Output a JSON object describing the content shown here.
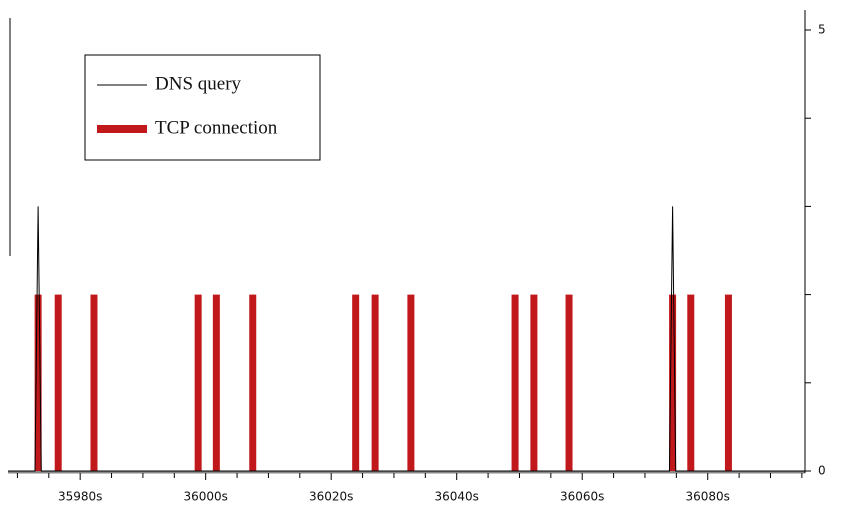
{
  "chart_data": {
    "type": "timeline",
    "xlim": [
      35968.5,
      36095.5
    ],
    "xticks": [
      {
        "value": 35980,
        "label": "35980s"
      },
      {
        "value": 36000,
        "label": "36000s"
      },
      {
        "value": 36020,
        "label": "36020s"
      },
      {
        "value": 36040,
        "label": "36040s"
      },
      {
        "value": 36060,
        "label": "36060s"
      },
      {
        "value": 36080,
        "label": "36080s"
      }
    ],
    "x_minor_ticks": [
      35970,
      35975,
      35985,
      35990,
      35995,
      36005,
      36010,
      36015,
      36025,
      36030,
      36035,
      36045,
      36050,
      36055,
      36065,
      36070,
      36075,
      36085,
      36090,
      36095
    ],
    "ylim": [
      0,
      5
    ],
    "yticks": [
      0,
      5
    ],
    "y_minor_ticks": [
      1,
      2,
      3,
      4
    ],
    "legend_position": "upper left",
    "series": [
      {
        "name": "DNS query",
        "color": "#000000",
        "kind": "line",
        "x": [
          35968.5,
          35972.8,
          35973.3,
          35973.8,
          36073.9,
          36074.4,
          36074.9,
          36095.5
        ],
        "values": [
          0,
          0,
          3,
          0,
          0,
          3,
          0,
          0
        ]
      },
      {
        "name": "TCP connection",
        "color": "#c0181b",
        "kind": "bar",
        "x": [
          35973.3,
          35976.5,
          35982.2,
          35998.8,
          36001.7,
          36007.5,
          36023.9,
          36027.0,
          36032.7,
          36049.3,
          36052.3,
          36057.9,
          36074.4,
          36077.3,
          36083.3
        ],
        "values": [
          2,
          2,
          2,
          2,
          2,
          2,
          2,
          2,
          2,
          2,
          2,
          2,
          2,
          2,
          2
        ]
      }
    ]
  }
}
